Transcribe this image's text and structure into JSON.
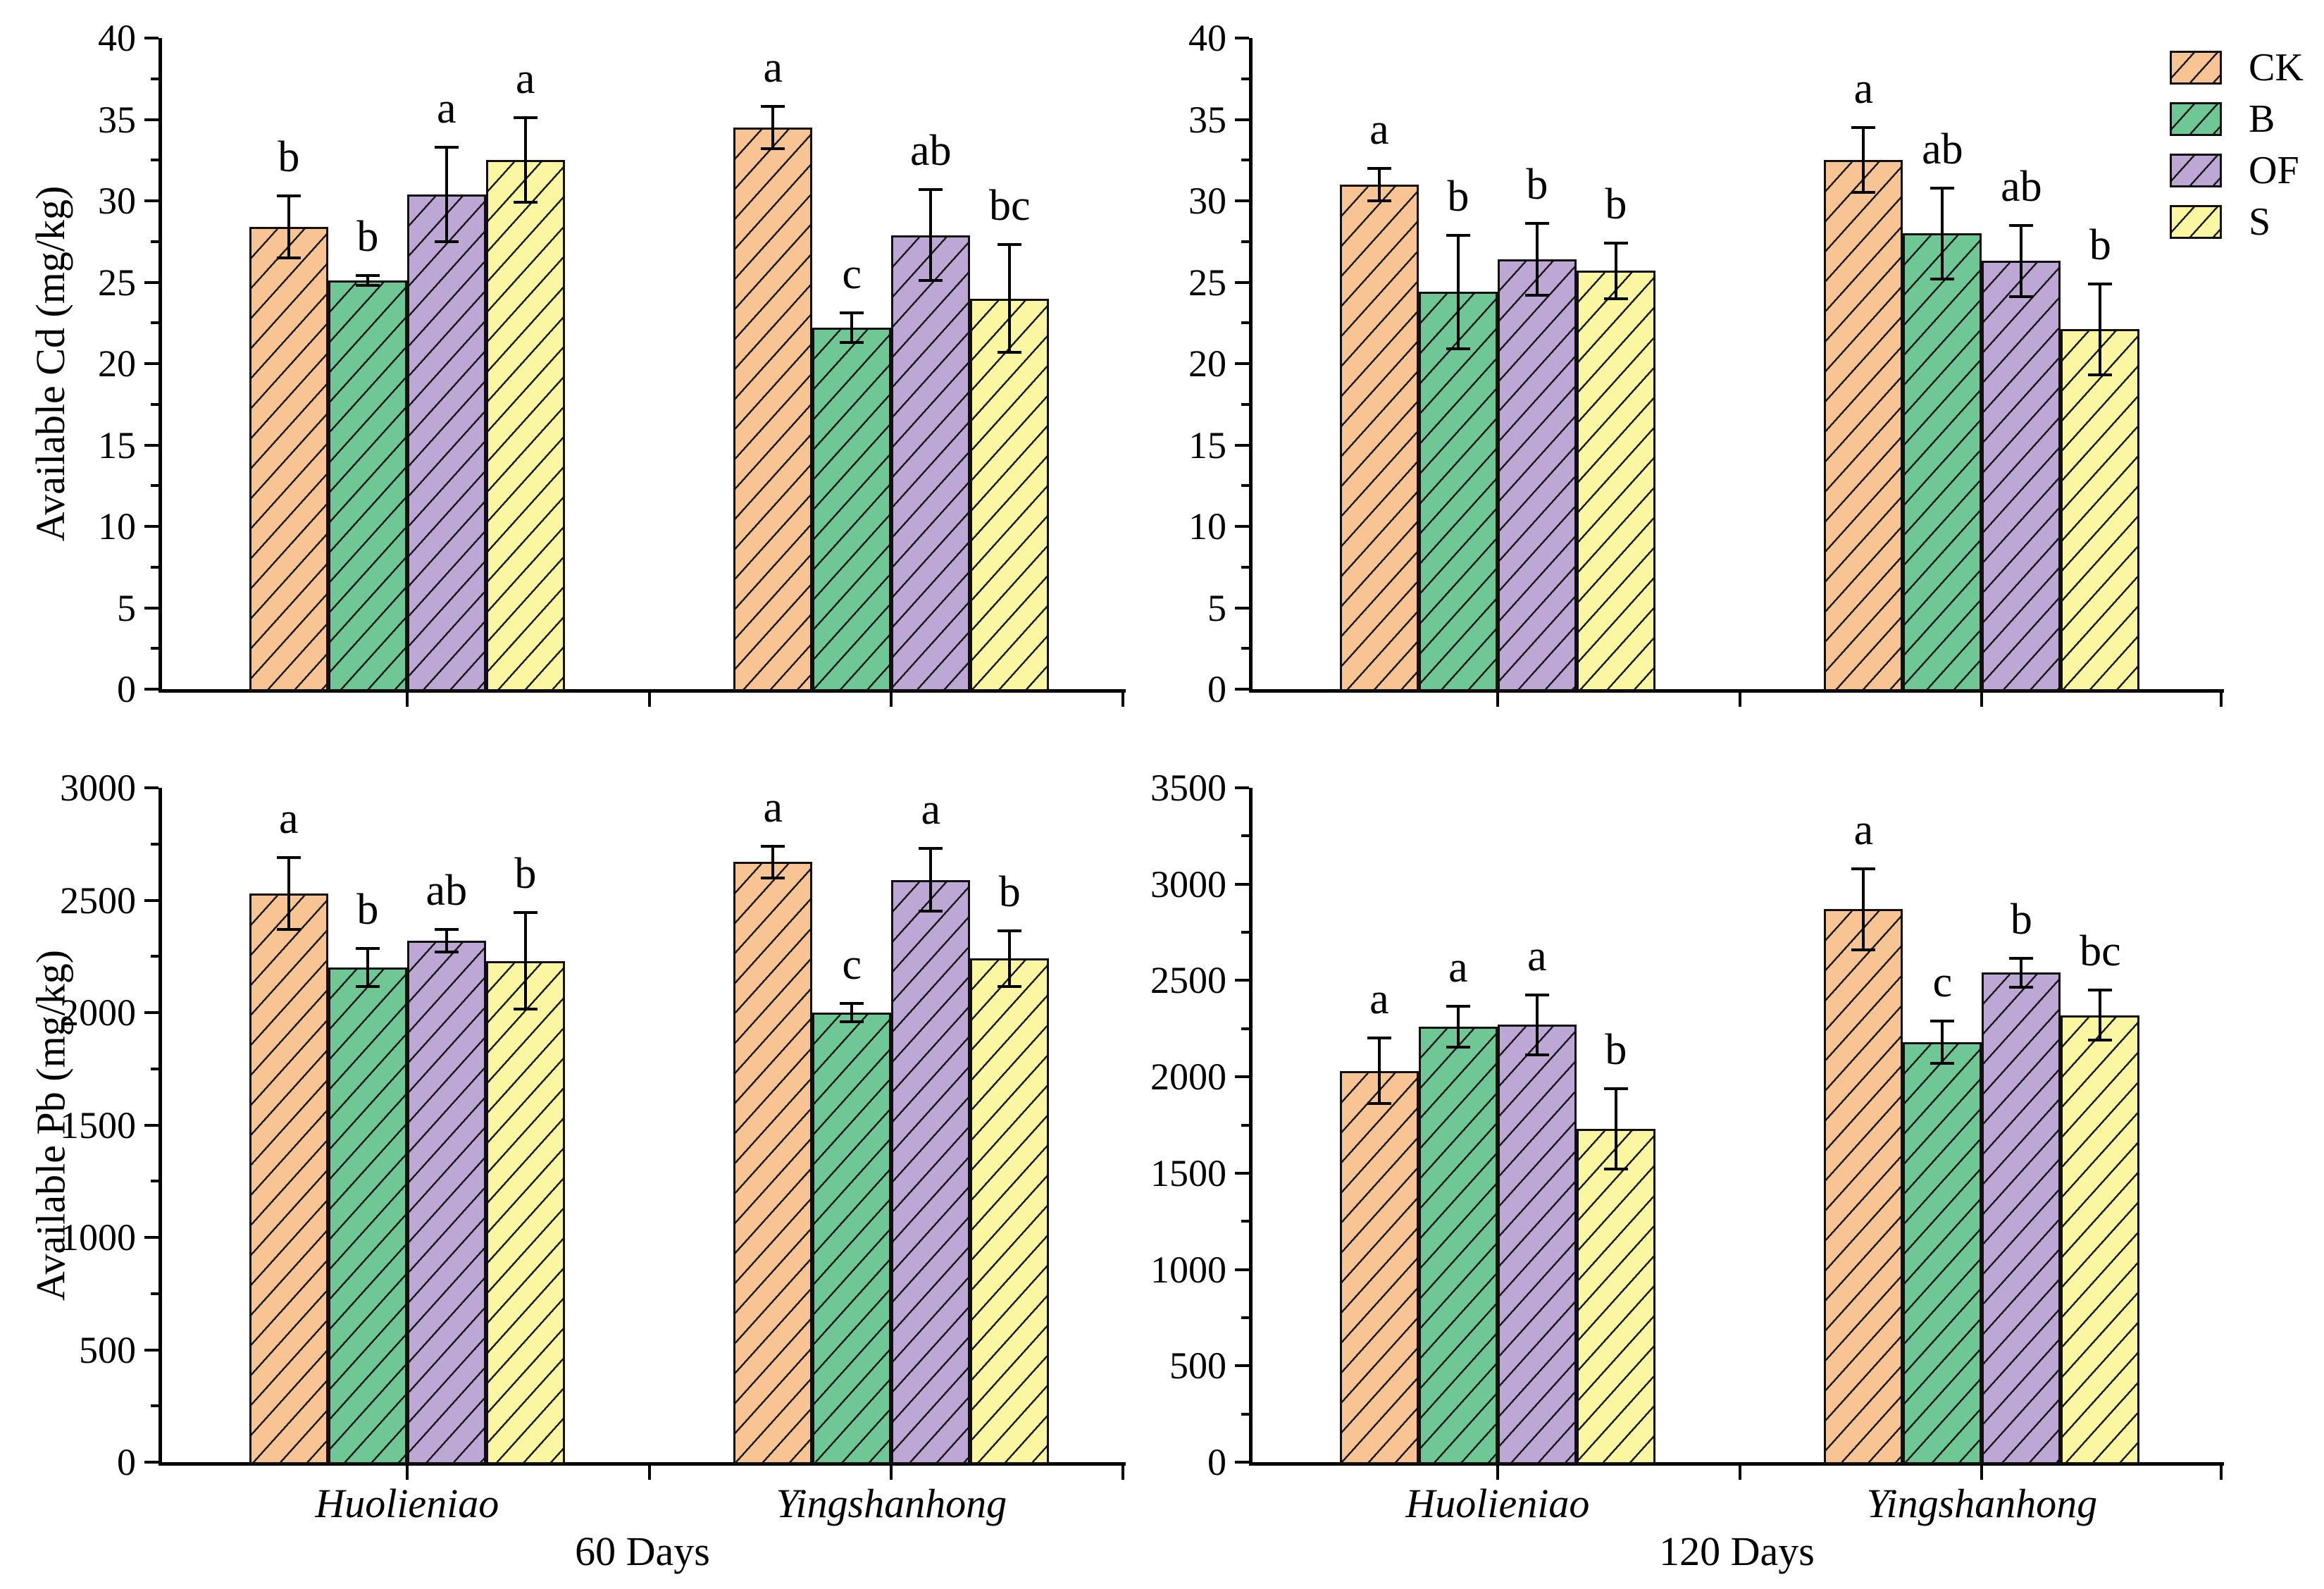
{
  "figure": {
    "background": "#ffffff",
    "axis_color": "#000000",
    "treatments": [
      {
        "label": "CK",
        "color": "#F8C494"
      },
      {
        "label": "B",
        "color": "#6FC795"
      },
      {
        "label": "OF",
        "color": "#BDA7D5"
      },
      {
        "label": "S",
        "color": "#FBF6A1"
      }
    ],
    "legend": {
      "position": "top-right",
      "items": [
        {
          "label": "CK",
          "color": "#F8C494"
        },
        {
          "label": "B",
          "color": "#6FC795"
        },
        {
          "label": "OF",
          "color": "#BDA7D5"
        },
        {
          "label": "S",
          "color": "#FBF6A1"
        }
      ]
    }
  },
  "chart_data": [
    {
      "type": "bar",
      "position": "top-left",
      "ylabel": "Available Cd (mg/kg)",
      "xlabel": "",
      "show_category_labels": false,
      "ylim": [
        0,
        40
      ],
      "ytick_major": 5,
      "ytick_minor": 2.5,
      "grid": false,
      "categories": [
        "Huolieniao",
        "Yingshanhong"
      ],
      "series": [
        {
          "name": "CK",
          "values": [
            28.4,
            34.5
          ],
          "errors": [
            1.9,
            1.3
          ],
          "sig_letters": [
            "b",
            "a"
          ]
        },
        {
          "name": "B",
          "values": [
            25.1,
            22.2
          ],
          "errors": [
            0.3,
            0.9
          ],
          "sig_letters": [
            "b",
            "c"
          ]
        },
        {
          "name": "OF",
          "values": [
            30.4,
            27.9
          ],
          "errors": [
            2.9,
            2.8
          ],
          "sig_letters": [
            "a",
            "ab"
          ]
        },
        {
          "name": "S",
          "values": [
            32.5,
            24.0
          ],
          "errors": [
            2.6,
            3.3
          ],
          "sig_letters": [
            "a",
            "bc"
          ]
        }
      ]
    },
    {
      "type": "bar",
      "position": "top-right",
      "ylabel": "",
      "xlabel": "",
      "show_category_labels": false,
      "ylim": [
        0,
        40
      ],
      "ytick_major": 5,
      "ytick_minor": 2.5,
      "grid": false,
      "categories": [
        "Huolieniao",
        "Yingshanhong"
      ],
      "series": [
        {
          "name": "CK",
          "values": [
            31.0,
            32.5
          ],
          "errors": [
            1.0,
            2.0
          ],
          "sig_letters": [
            "a",
            "a"
          ]
        },
        {
          "name": "B",
          "values": [
            24.4,
            28.0
          ],
          "errors": [
            3.5,
            2.8
          ],
          "sig_letters": [
            "b",
            "ab"
          ]
        },
        {
          "name": "OF",
          "values": [
            26.4,
            26.3
          ],
          "errors": [
            2.2,
            2.2
          ],
          "sig_letters": [
            "b",
            "ab"
          ]
        },
        {
          "name": "S",
          "values": [
            25.7,
            22.1
          ],
          "errors": [
            1.7,
            2.8
          ],
          "sig_letters": [
            "b",
            "b"
          ]
        }
      ]
    },
    {
      "type": "bar",
      "position": "bottom-left",
      "ylabel": "Available Pb (mg/kg)",
      "xlabel": "60 Days",
      "show_category_labels": true,
      "ylim": [
        0,
        3000
      ],
      "ytick_major": 500,
      "ytick_minor": 250,
      "grid": false,
      "categories": [
        "Huolieniao",
        "Yingshanhong"
      ],
      "series": [
        {
          "name": "CK",
          "values": [
            2530,
            2670
          ],
          "errors": [
            160,
            70
          ],
          "sig_letters": [
            "a",
            "a"
          ]
        },
        {
          "name": "B",
          "values": [
            2200,
            2000
          ],
          "errors": [
            85,
            40
          ],
          "sig_letters": [
            "b",
            "c"
          ]
        },
        {
          "name": "OF",
          "values": [
            2320,
            2590
          ],
          "errors": [
            50,
            140
          ],
          "sig_letters": [
            "ab",
            "a"
          ]
        },
        {
          "name": "S",
          "values": [
            2230,
            2240
          ],
          "errors": [
            215,
            125
          ],
          "sig_letters": [
            "b",
            "b"
          ]
        }
      ]
    },
    {
      "type": "bar",
      "position": "bottom-right",
      "ylabel": "",
      "xlabel": "120 Days",
      "show_category_labels": true,
      "ylim": [
        0,
        3500
      ],
      "ytick_major": 500,
      "ytick_minor": 250,
      "grid": false,
      "categories": [
        "Huolieniao",
        "Yingshanhong"
      ],
      "series": [
        {
          "name": "CK",
          "values": [
            2030,
            2870
          ],
          "errors": [
            170,
            210
          ],
          "sig_letters": [
            "a",
            "a"
          ]
        },
        {
          "name": "B",
          "values": [
            2260,
            2180
          ],
          "errors": [
            105,
            110
          ],
          "sig_letters": [
            "a",
            "c"
          ]
        },
        {
          "name": "OF",
          "values": [
            2270,
            2540
          ],
          "errors": [
            155,
            75
          ],
          "sig_letters": [
            "a",
            "b"
          ]
        },
        {
          "name": "S",
          "values": [
            1730,
            2320
          ],
          "errors": [
            210,
            130
          ],
          "sig_letters": [
            "b",
            "bc"
          ]
        }
      ]
    }
  ]
}
